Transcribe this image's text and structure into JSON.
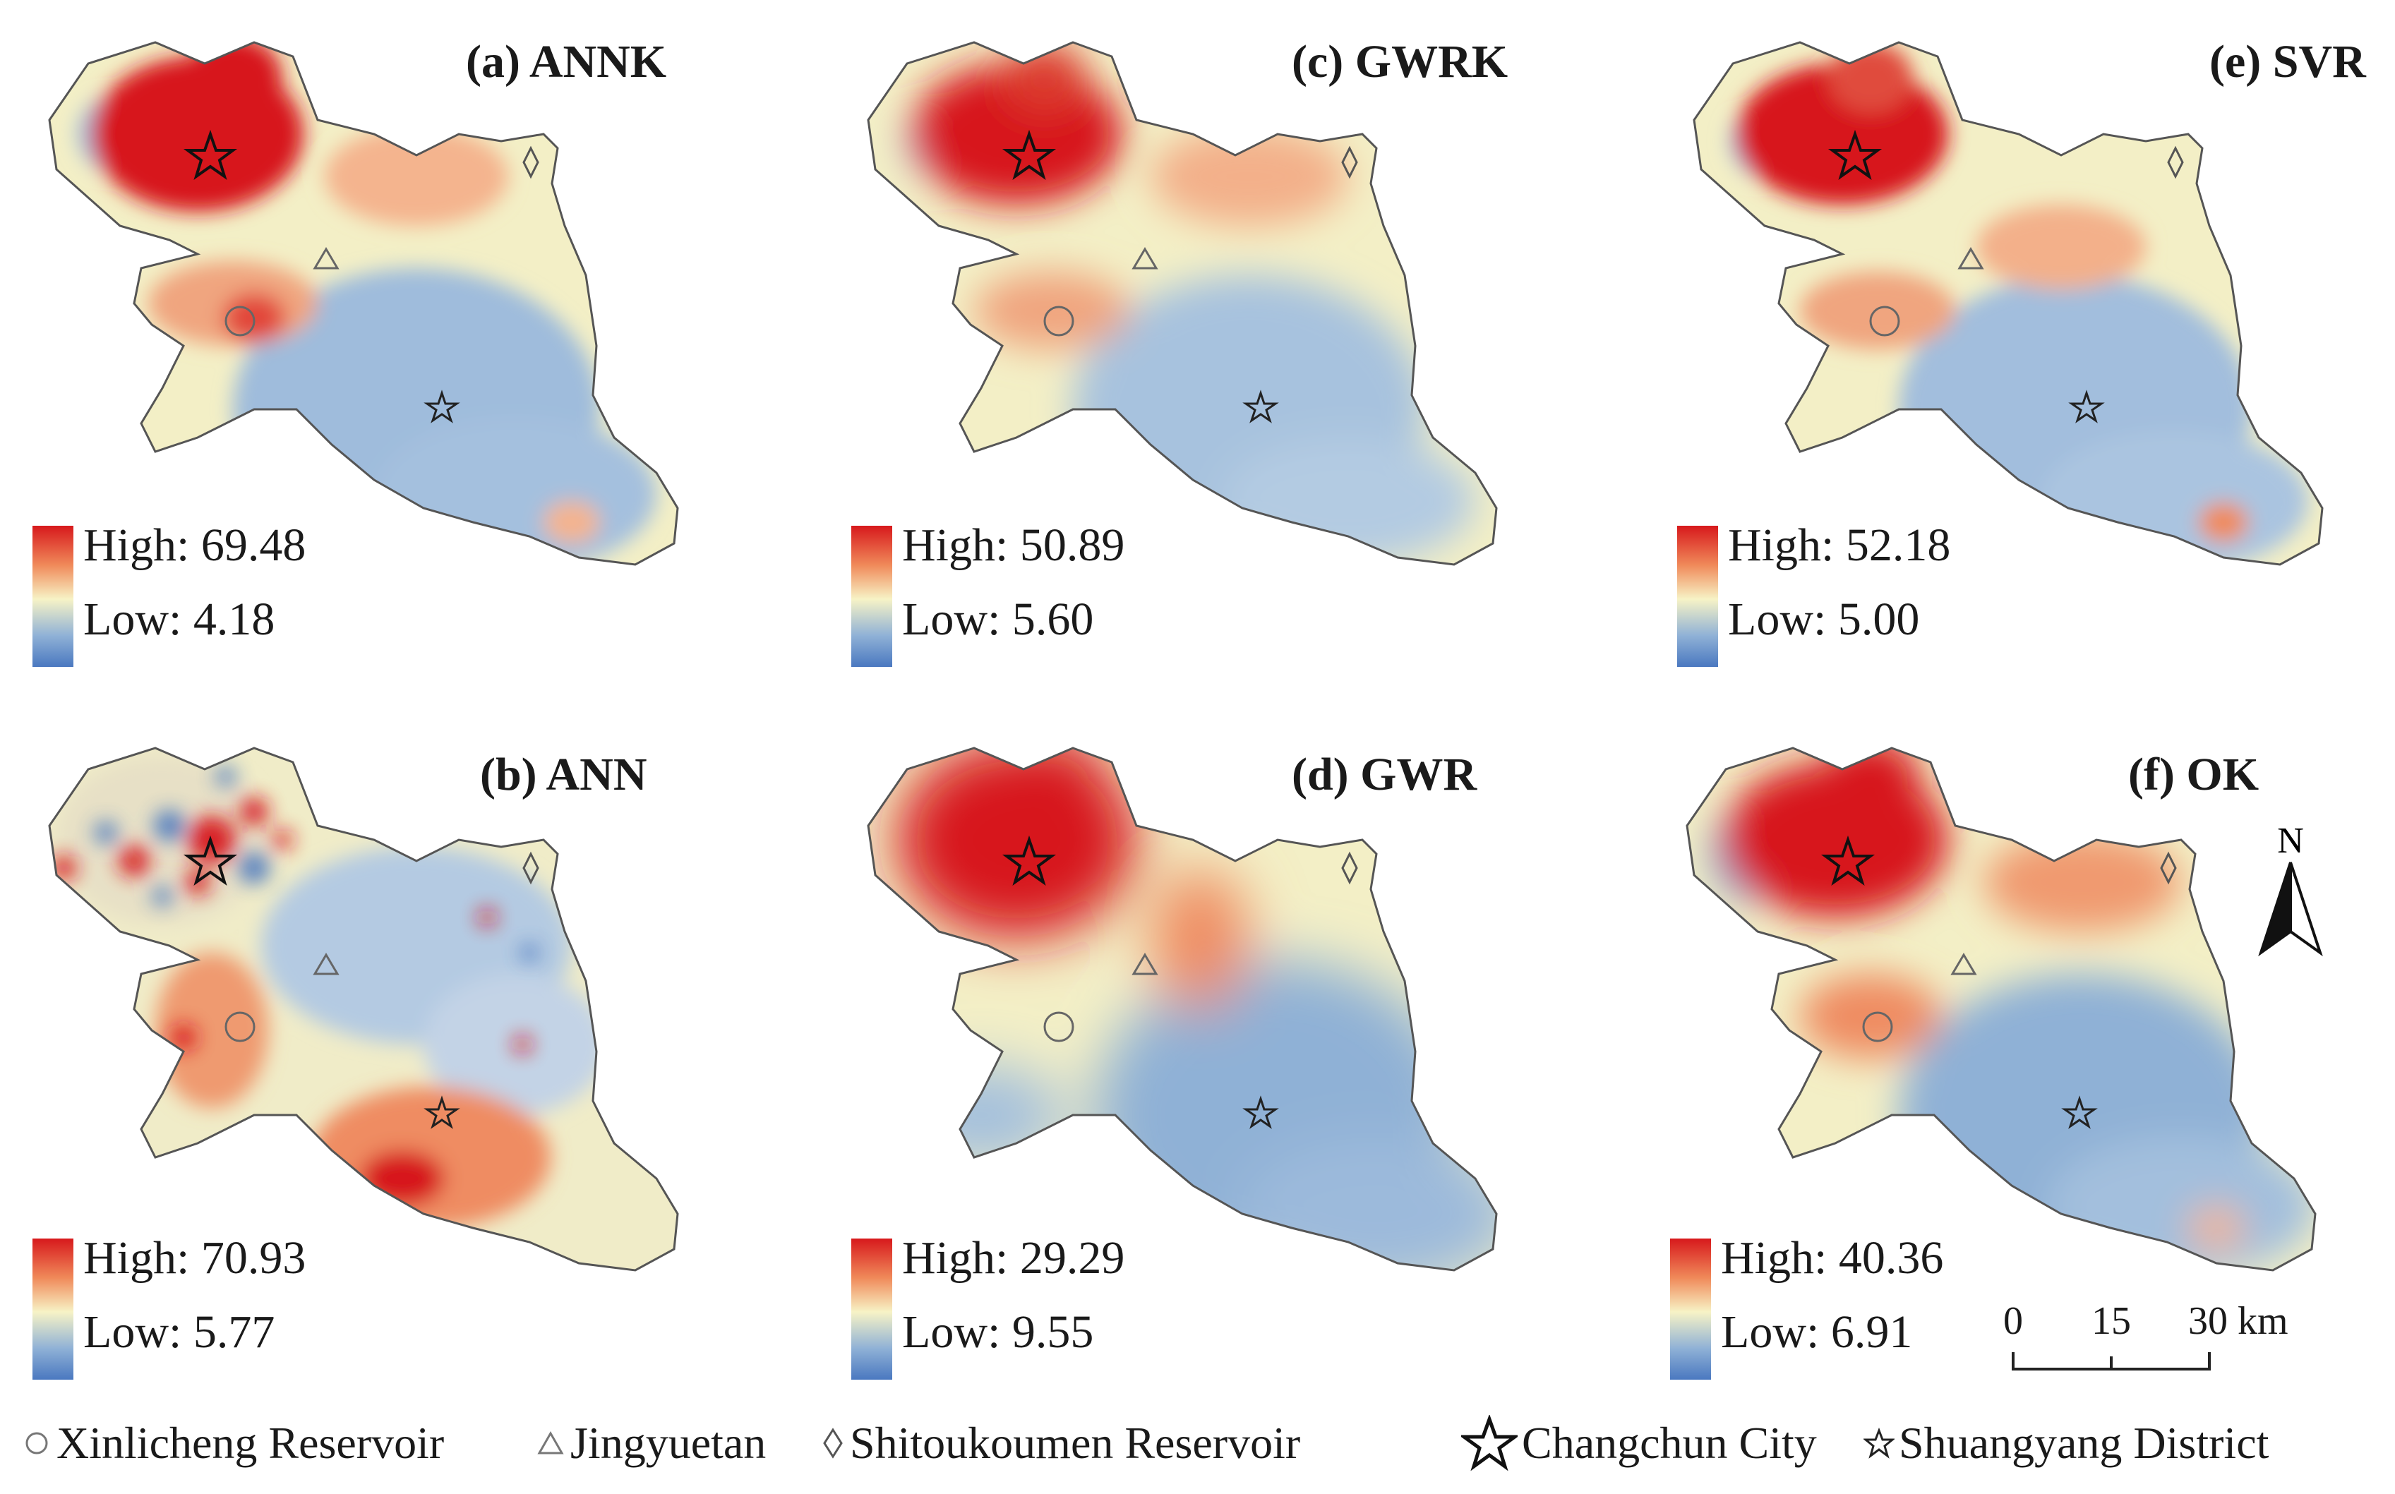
{
  "panels": [
    {
      "id": "a",
      "title": "(a) ANNK",
      "high_label": "High: 69.48",
      "low_label": "Low: 4.18",
      "pattern": "annk"
    },
    {
      "id": "c",
      "title": "(c) GWRK",
      "high_label": "High: 50.89",
      "low_label": "Low: 5.60",
      "pattern": "gwrk"
    },
    {
      "id": "e",
      "title": "(e) SVR",
      "high_label": "High: 52.18",
      "low_label": "Low: 5.00",
      "pattern": "svr"
    },
    {
      "id": "b",
      "title": "(b) ANN",
      "high_label": "High: 70.93",
      "low_label": "Low: 5.77",
      "pattern": "ann"
    },
    {
      "id": "d",
      "title": "(d) GWR",
      "high_label": "High: 29.29",
      "low_label": "Low: 9.55",
      "pattern": "gwr"
    },
    {
      "id": "f",
      "title": "(f) OK",
      "high_label": "High: 40.36",
      "low_label": "Low: 6.91",
      "pattern": "ok"
    }
  ],
  "legend_colors": {
    "high": "#d7191c",
    "mid": "#f7f3c6",
    "low": "#4a78c0"
  },
  "markers": {
    "xinlicheng": {
      "label": "Xinlicheng Reservoir",
      "icon": "circle-icon"
    },
    "jingyuetan": {
      "label": "Jingyuetan",
      "icon": "triangle-icon"
    },
    "shitoukoumen": {
      "label": "Shitoukoumen Reservoir",
      "icon": "diamond-icon"
    },
    "changchun": {
      "label": "Changchun City",
      "icon": "large-star-icon"
    },
    "shuangyang": {
      "label": "Shuangyang District",
      "icon": "small-star-icon"
    }
  },
  "north_arrow": {
    "label": "N"
  },
  "scale_bar": {
    "ticks": [
      "0",
      "15",
      "30 km"
    ]
  }
}
